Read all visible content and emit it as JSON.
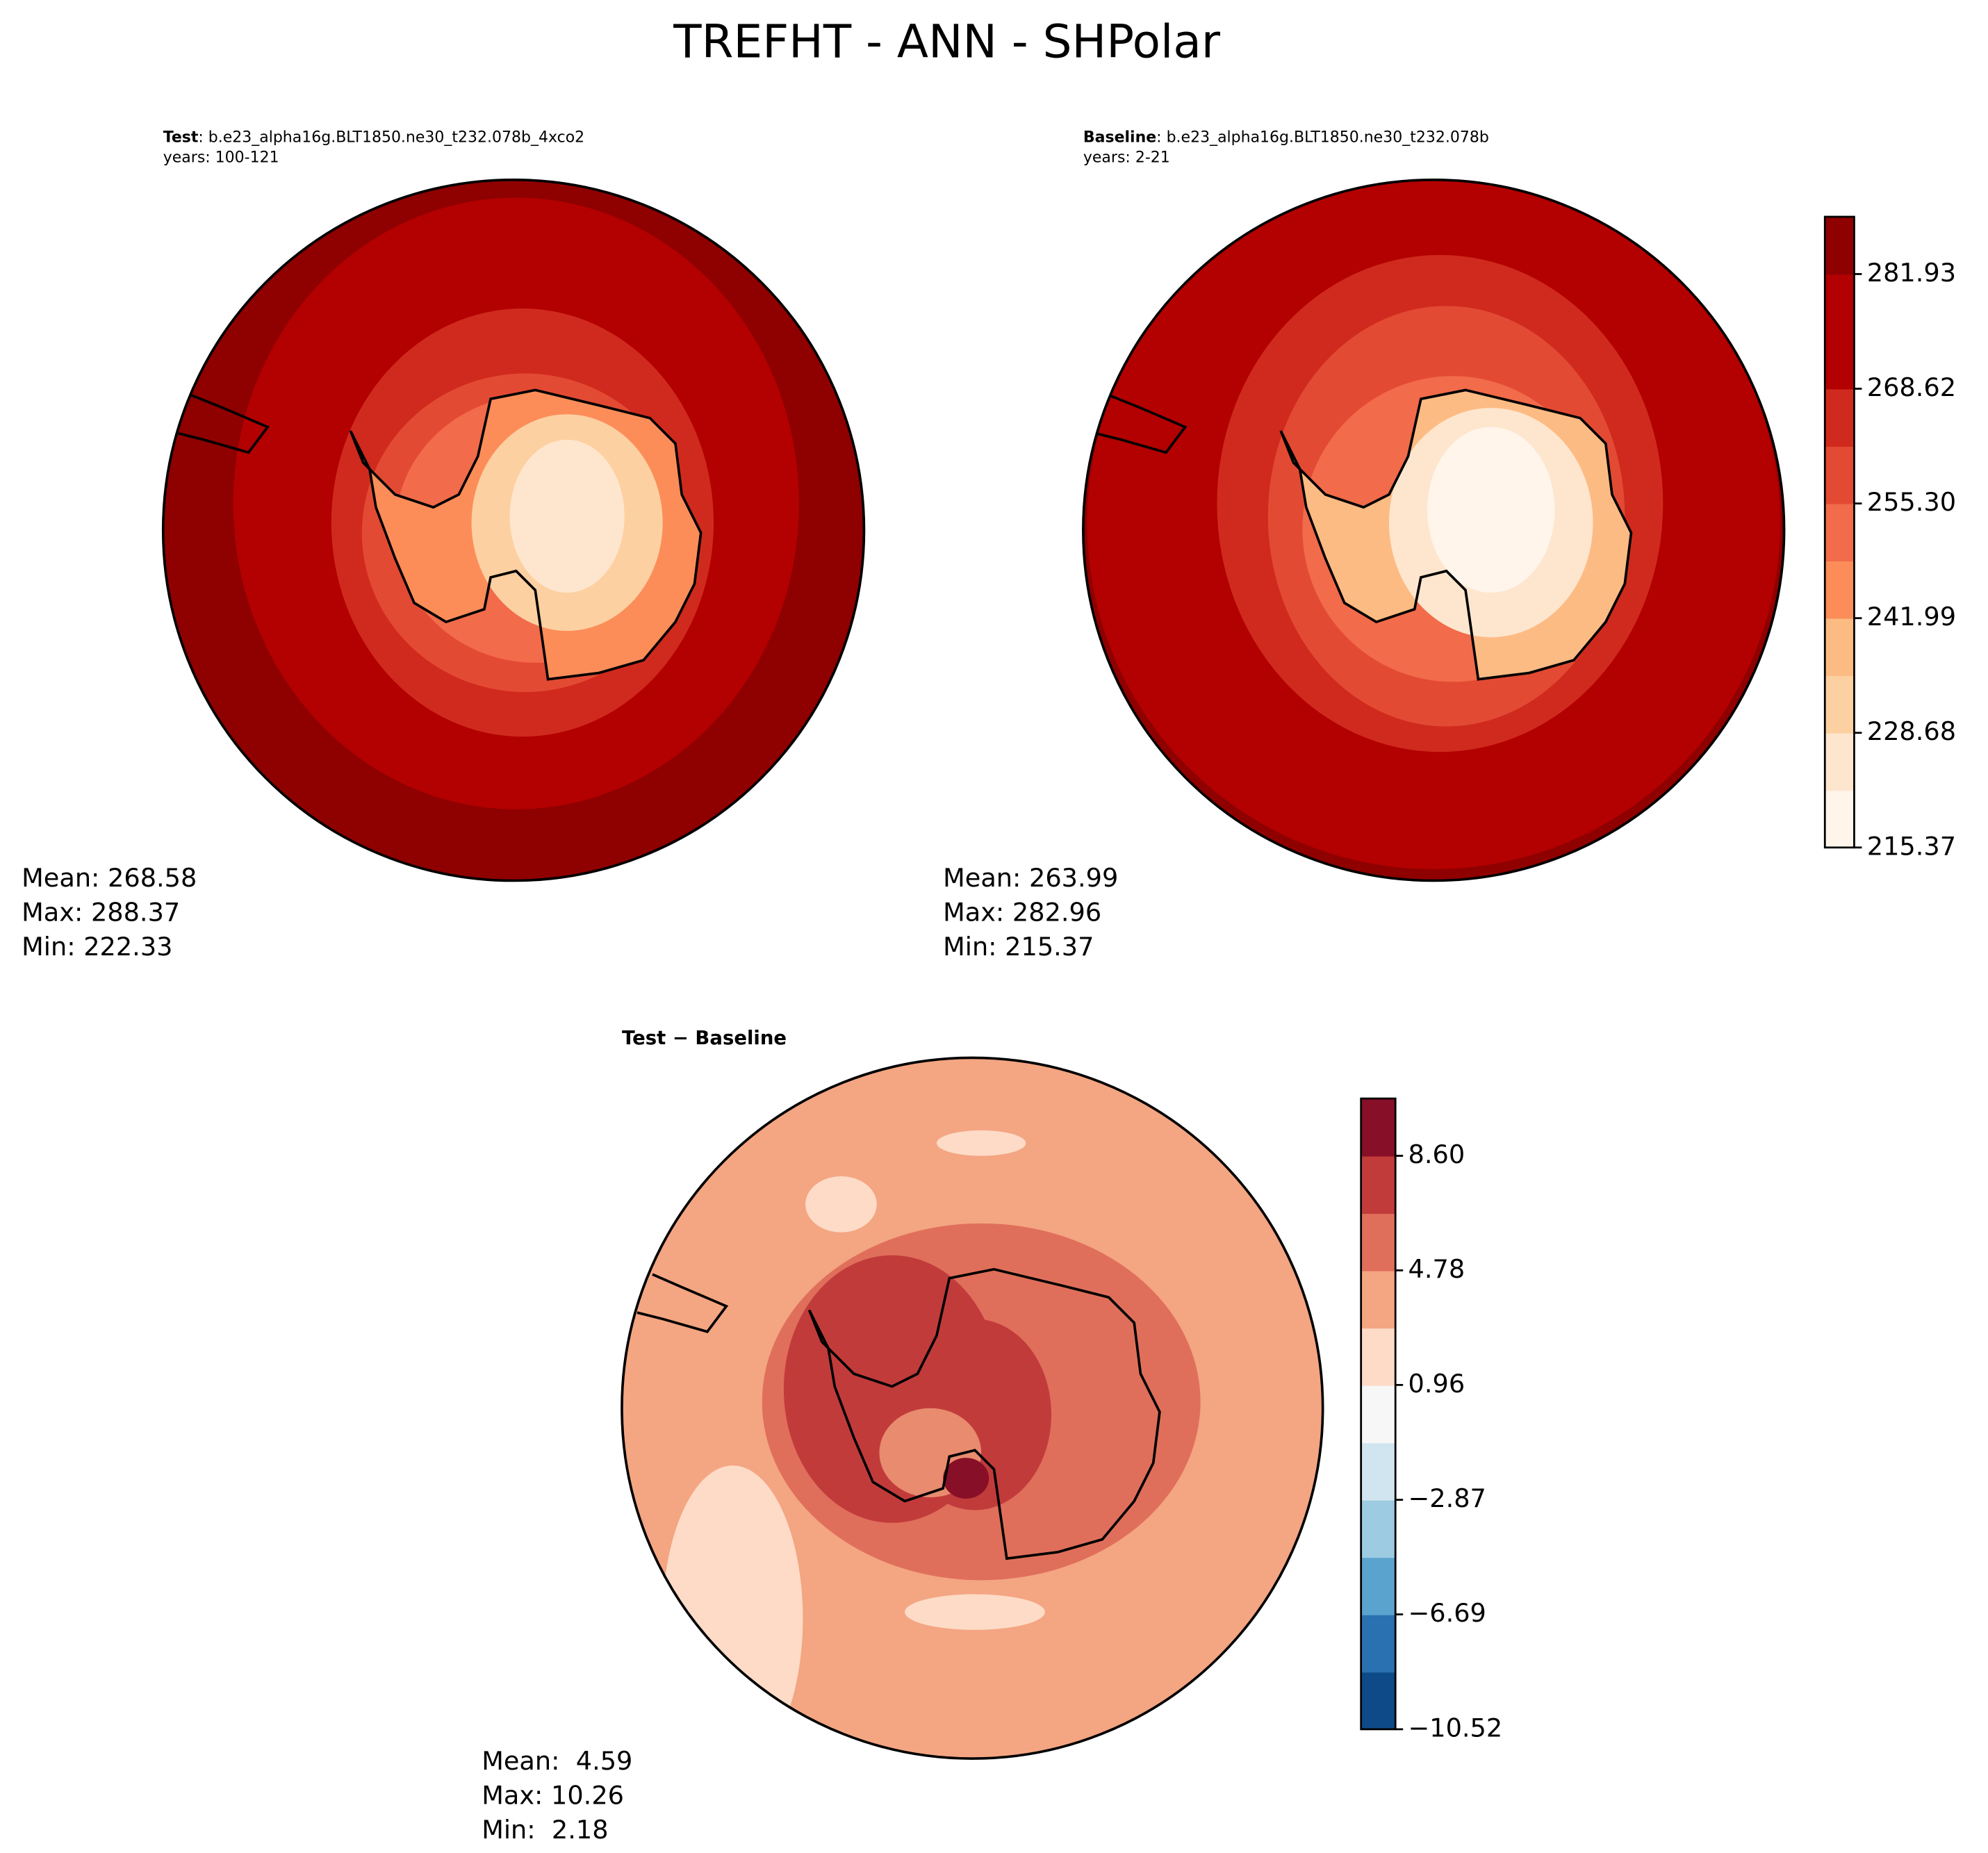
{
  "title": "TREFHT - ANN - SHPolar",
  "panels": [
    {
      "label": "Test",
      "case": ": b.e23_alpha16g.BLT1850.ne30_t232.078b_4xco2",
      "years": "years: 100-121",
      "stats": [
        "Mean: 268.58",
        "Max: 288.37",
        "Min: 222.33"
      ]
    },
    {
      "label": "Baseline",
      "case": ": b.e23_alpha16g.BLT1850.ne30_t232.078b",
      "years": "years: 2-21",
      "stats": [
        "Mean: 263.99",
        "Max: 282.96",
        "Min: 215.37"
      ]
    },
    {
      "label": "Test − Baseline",
      "stats": [
        "Mean:  4.59",
        "Max: 10.26",
        "Min:  2.18"
      ]
    }
  ],
  "colorbars": [
    {
      "lim": [
        215.37,
        288.58
      ],
      "ticks": [
        215.37,
        228.68,
        241.99,
        {
          "value": 255.3,
          "label": "255.30"
        },
        268.62,
        281.93
      ],
      "colors": [
        "#fff5eb",
        "#fee6ce",
        "#fdd0a2",
        "#fdbb84",
        "#fc8d59",
        "#f26b4a",
        "#e34a33",
        "#d02a1e",
        "#b30000",
        "#b30000",
        "#8f0000"
      ]
    },
    {
      "lim": [
        -10.52,
        10.51
      ],
      "ticks": [
        {
          "value": -10.52,
          "label": "−10.52"
        },
        {
          "value": -6.69,
          "label": "−6.69"
        },
        {
          "value": -2.87,
          "label": "−2.87"
        },
        0.96,
        4.78,
        {
          "value": 8.6,
          "label": "8.60"
        }
      ],
      "colors": [
        "#0d4a87",
        "#2a71b2",
        "#5ba3cf",
        "#9dcbe1",
        "#d1e5f0",
        "#f7f7f7",
        "#fddbc7",
        "#f4a582",
        "#df6f5b",
        "#c23b3b",
        "#870f27"
      ]
    }
  ]
}
